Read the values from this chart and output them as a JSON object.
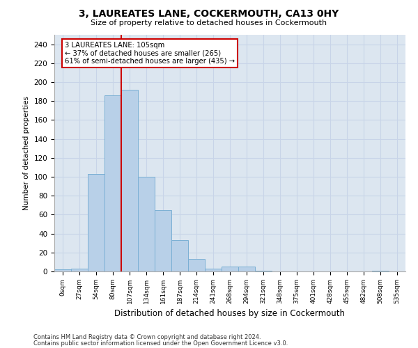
{
  "title": "3, LAUREATES LANE, COCKERMOUTH, CA13 0HY",
  "subtitle": "Size of property relative to detached houses in Cockermouth",
  "xlabel": "Distribution of detached houses by size in Cockermouth",
  "ylabel": "Number of detached properties",
  "bar_labels": [
    "0sqm",
    "27sqm",
    "54sqm",
    "80sqm",
    "107sqm",
    "134sqm",
    "161sqm",
    "187sqm",
    "214sqm",
    "241sqm",
    "268sqm",
    "294sqm",
    "321sqm",
    "348sqm",
    "375sqm",
    "401sqm",
    "428sqm",
    "455sqm",
    "482sqm",
    "508sqm",
    "535sqm"
  ],
  "bar_values": [
    2,
    3,
    103,
    186,
    192,
    100,
    65,
    33,
    13,
    3,
    5,
    5,
    1,
    0,
    0,
    0,
    0,
    0,
    0,
    1,
    0
  ],
  "bar_color": "#b8d0e8",
  "bar_edge_color": "#7aafd4",
  "vline_color": "#cc0000",
  "vline_x": 4.0,
  "annotation_line1": "3 LAUREATES LANE: 105sqm",
  "annotation_line2": "← 37% of detached houses are smaller (265)",
  "annotation_line3": "61% of semi-detached houses are larger (435) →",
  "annotation_box_color": "#ffffff",
  "annotation_box_edge_color": "#cc0000",
  "grid_color": "#c8d4e8",
  "bg_color": "#dce6f0",
  "ylim": [
    0,
    250
  ],
  "yticks": [
    0,
    20,
    40,
    60,
    80,
    100,
    120,
    140,
    160,
    180,
    200,
    220,
    240
  ],
  "footer1": "Contains HM Land Registry data © Crown copyright and database right 2024.",
  "footer2": "Contains public sector information licensed under the Open Government Licence v3.0."
}
